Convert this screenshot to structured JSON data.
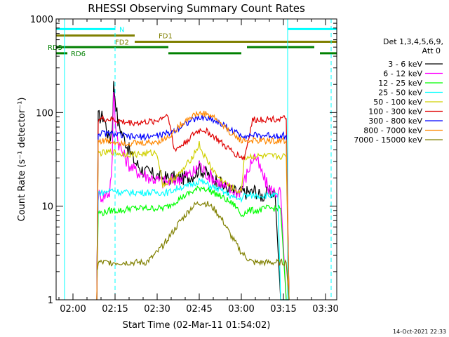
{
  "chart_data": {
    "type": "line",
    "title": "RHESSI Observing Summary Count Rates",
    "xlabel": "Start Time (02-Mar-11 01:54:02)",
    "ylabel": "Count Rate (s⁻¹ detector⁻¹)",
    "y_scale": "log",
    "ylim": [
      1,
      1000
    ],
    "xlim": [
      114,
      214
    ],
    "x_unit": "minutes after 00:00 UT, 02-Mar-11",
    "x_ticks": [
      {
        "value": 120,
        "label": "02:00"
      },
      {
        "value": 135,
        "label": "02:15"
      },
      {
        "value": 150,
        "label": "02:30"
      },
      {
        "value": 165,
        "label": "02:45"
      },
      {
        "value": 180,
        "label": "03:00"
      },
      {
        "value": 195,
        "label": "03:15"
      },
      {
        "value": 210,
        "label": "03:30"
      }
    ],
    "y_ticks": [
      {
        "value": 1,
        "label": "1"
      },
      {
        "value": 10,
        "label": "10"
      },
      {
        "value": 100,
        "label": "100"
      },
      {
        "value": 1000,
        "label": "1000"
      }
    ],
    "legend_header": [
      "Det 1,3,4,5,6,9,",
      "Att 0"
    ],
    "legend_position": "right",
    "timestamp": "14-Oct-2021 22:33",
    "grid": false,
    "series": [
      {
        "name": "3 - 6 keV",
        "color": "#000000",
        "x": [
          128.5,
          129,
          131,
          133,
          134,
          134.5,
          135,
          136,
          138,
          140,
          142,
          145,
          148,
          150,
          152,
          154,
          156,
          158,
          160,
          162,
          164,
          165,
          166,
          168,
          170,
          172,
          174,
          176,
          178,
          180,
          182,
          184,
          185,
          186,
          188,
          190,
          192,
          194,
          196,
          197
        ],
        "y": [
          1,
          90,
          90,
          50,
          70,
          200,
          150,
          80,
          55,
          40,
          30,
          24,
          22,
          21,
          20,
          20,
          20,
          20,
          20,
          21,
          23,
          26,
          24,
          22,
          20,
          18,
          16,
          15,
          14,
          14,
          14,
          14,
          15,
          13,
          13,
          14,
          14,
          1,
          1,
          1
        ]
      },
      {
        "name": "6 - 12 keV",
        "color": "#ff00ff",
        "x": [
          128.5,
          129,
          131,
          133,
          134,
          134.5,
          135,
          136,
          138,
          140,
          142,
          145,
          148,
          150,
          152,
          154,
          156,
          158,
          160,
          162,
          164,
          165,
          166,
          168,
          170,
          172,
          174,
          176,
          178,
          180,
          182,
          184,
          185,
          186,
          188,
          190,
          192,
          194,
          196,
          197
        ],
        "y": [
          1,
          13,
          13,
          14,
          30,
          180,
          90,
          50,
          35,
          28,
          24,
          22,
          20,
          19,
          18,
          18,
          19,
          20,
          21,
          22,
          24,
          30,
          25,
          22,
          20,
          18,
          16,
          15,
          14,
          15,
          22,
          32,
          35,
          28,
          20,
          15,
          14,
          14,
          1,
          1
        ]
      },
      {
        "name": "12 - 25 keV",
        "color": "#00ff00",
        "x": [
          128.5,
          129,
          131,
          133,
          135,
          138,
          140,
          143,
          147,
          150,
          152,
          154,
          156,
          158,
          160,
          162,
          164,
          166,
          168,
          170,
          172,
          174,
          176,
          178,
          180,
          181,
          183,
          186,
          189,
          192,
          194,
          196,
          197
        ],
        "y": [
          1,
          8.5,
          8.5,
          9,
          9,
          9,
          9.5,
          9.5,
          9.5,
          9.5,
          9.5,
          10,
          11,
          12,
          13,
          14,
          15,
          16,
          15,
          14,
          13,
          12,
          11,
          10,
          8,
          8.5,
          9,
          9,
          9.5,
          9.5,
          9.5,
          1,
          1
        ]
      },
      {
        "name": "25 - 50 keV",
        "color": "#00ffff",
        "x": [
          128.5,
          129,
          131,
          134,
          137,
          140,
          143,
          147,
          150,
          152,
          154,
          156,
          158,
          160,
          162,
          164,
          165,
          166,
          168,
          170,
          172,
          174,
          176,
          178,
          180,
          181,
          184,
          187,
          190,
          193,
          194,
          196,
          197
        ],
        "y": [
          1,
          14,
          14,
          15,
          14,
          14,
          14,
          14,
          14,
          14,
          14,
          15,
          16,
          16,
          17,
          18,
          19,
          18,
          17,
          16,
          15,
          14,
          13,
          12,
          12,
          13,
          13,
          13,
          13,
          13,
          1,
          1,
          1
        ]
      },
      {
        "name": "50 - 100 keV",
        "color": "#d0d000",
        "x": [
          128.5,
          129,
          131,
          134,
          137,
          140,
          144,
          148,
          150,
          152,
          154,
          156,
          158,
          160,
          162,
          164,
          165,
          166,
          168,
          170,
          172,
          174,
          176,
          178,
          180,
          181,
          184,
          187,
          190,
          193,
          196,
          197
        ],
        "y": [
          1,
          37,
          37,
          38,
          36,
          36,
          36,
          37,
          37,
          17,
          18,
          20,
          22,
          26,
          32,
          40,
          46,
          38,
          30,
          24,
          20,
          18,
          16,
          15,
          14,
          33,
          34,
          34,
          34,
          34,
          34,
          1
        ]
      },
      {
        "name": "100 - 300 keV",
        "color": "#e00000",
        "x": [
          128.5,
          129,
          131,
          134,
          137,
          140,
          144,
          148,
          150,
          152,
          154,
          156,
          158,
          160,
          162,
          164,
          166,
          168,
          170,
          172,
          174,
          176,
          178,
          180,
          181,
          184,
          187,
          190,
          193,
          196,
          197
        ],
        "y": [
          1,
          85,
          85,
          84,
          80,
          78,
          78,
          80,
          82,
          90,
          95,
          40,
          43,
          48,
          55,
          62,
          66,
          62,
          56,
          50,
          44,
          40,
          36,
          34,
          32,
          83,
          85,
          85,
          86,
          86,
          1
        ]
      },
      {
        "name": "300 - 800 keV",
        "color": "#0000ff",
        "x": [
          128.5,
          129,
          131,
          134,
          137,
          140,
          144,
          148,
          150,
          152,
          154,
          156,
          158,
          160,
          162,
          164,
          166,
          168,
          170,
          172,
          174,
          176,
          178,
          180,
          181,
          184,
          187,
          190,
          193,
          196,
          197
        ],
        "y": [
          1,
          60,
          60,
          59,
          57,
          55,
          55,
          56,
          57,
          58,
          60,
          64,
          70,
          76,
          82,
          86,
          88,
          87,
          84,
          78,
          72,
          66,
          61,
          58,
          57,
          57,
          57,
          57,
          57,
          57,
          1
        ]
      },
      {
        "name": "800 - 7000 keV",
        "color": "#ff8800",
        "x": [
          128.5,
          129,
          131,
          134,
          137,
          140,
          144,
          148,
          150,
          152,
          154,
          156,
          158,
          160,
          162,
          164,
          166,
          168,
          170,
          172,
          174,
          176,
          178,
          180,
          181,
          184,
          187,
          190,
          193,
          196,
          197
        ],
        "y": [
          1,
          50,
          50,
          49,
          48,
          47,
          47,
          48,
          49,
          51,
          55,
          62,
          72,
          82,
          90,
          96,
          98,
          96,
          90,
          80,
          70,
          62,
          55,
          51,
          50,
          50,
          50,
          50,
          50,
          50,
          1
        ]
      },
      {
        "name": "7000 - 15000 keV",
        "color": "#808000",
        "x": [
          128.5,
          129,
          131,
          134,
          137,
          140,
          143,
          146,
          148,
          150,
          152,
          154,
          156,
          158,
          160,
          162,
          164,
          166,
          168,
          170,
          172,
          174,
          176,
          178,
          180,
          182,
          184,
          187,
          190,
          193,
          196,
          197
        ],
        "y": [
          2,
          2.5,
          2.5,
          2.5,
          2.5,
          2.5,
          2.5,
          2.5,
          2.8,
          3.2,
          3.8,
          4.6,
          5.5,
          6.8,
          8,
          9.5,
          10.5,
          11,
          10.5,
          9.5,
          8,
          6.5,
          5,
          4,
          3.2,
          2.8,
          2.5,
          2.5,
          2.5,
          2.5,
          2.5,
          1
        ]
      }
    ],
    "status_bands": [
      {
        "label": "N",
        "color": "#00ffff",
        "y": 780,
        "segments": [
          [
            114,
            135
          ],
          [
            196.5,
            214
          ]
        ]
      },
      {
        "label": "FD1",
        "color": "#808000",
        "y": 665,
        "segments": [
          [
            114,
            142
          ]
        ]
      },
      {
        "label": "FD2",
        "color": "#808000",
        "y": 570,
        "segments": [
          [
            142,
            214
          ]
        ]
      },
      {
        "label": "RD5",
        "color": "#008000",
        "y": 500,
        "segments": [
          [
            114,
            154
          ],
          [
            182,
            206
          ]
        ]
      },
      {
        "label": "RD6",
        "color": "#008000",
        "y": 430,
        "segments": [
          [
            114,
            118
          ],
          [
            154,
            180
          ],
          [
            208,
            214
          ]
        ]
      }
    ],
    "vertical_markers": [
      {
        "x": 117,
        "color": "#00ffff",
        "style": "solid"
      },
      {
        "x": 135,
        "color": "#00ffff",
        "style": "dashed"
      },
      {
        "x": 196.5,
        "color": "#00ffff",
        "style": "solid"
      },
      {
        "x": 212,
        "color": "#00ffff",
        "style": "dashed"
      }
    ]
  }
}
